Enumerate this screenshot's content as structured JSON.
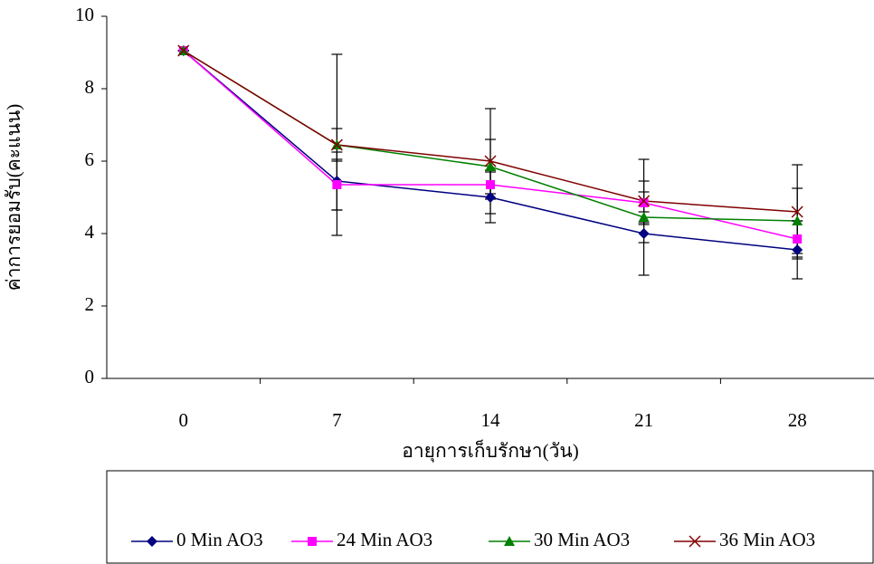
{
  "chart_data": {
    "type": "line",
    "x_label": "อายุการเก็บรักษา(วัน)",
    "y_label": "ค่าการยอมรับ(คะแนน)",
    "categories": [
      "0",
      "7",
      "14",
      "21",
      "28"
    ],
    "ylim": [
      0,
      10
    ],
    "yticks": [
      0,
      2,
      4,
      6,
      8,
      10
    ],
    "series": [
      {
        "name": "0 Min AO3",
        "color": "#000080",
        "marker": "diamond",
        "values": [
          9.05,
          5.45,
          5.0,
          4.0,
          3.55
        ],
        "errors": [
          0,
          0.8,
          0.7,
          1.15,
          0.8
        ]
      },
      {
        "name": "24 Min AO3",
        "color": "#ff00ff",
        "marker": "square",
        "values": [
          9.05,
          5.35,
          5.35,
          4.85,
          3.85
        ],
        "errors": [
          0,
          0.7,
          0.4,
          0.6,
          0.5
        ]
      },
      {
        "name": "30 Min AO3",
        "color": "#008000",
        "marker": "triangle",
        "values": [
          9.05,
          6.45,
          5.85,
          4.45,
          4.35
        ],
        "errors": [
          0,
          0.45,
          0.75,
          0.15,
          0.9
        ]
      },
      {
        "name": "36 Min AO3",
        "color": "#800000",
        "marker": "x",
        "values": [
          9.05,
          6.45,
          6.0,
          4.9,
          4.6
        ],
        "errors": [
          0,
          2.5,
          1.45,
          1.15,
          1.3
        ]
      }
    ]
  }
}
